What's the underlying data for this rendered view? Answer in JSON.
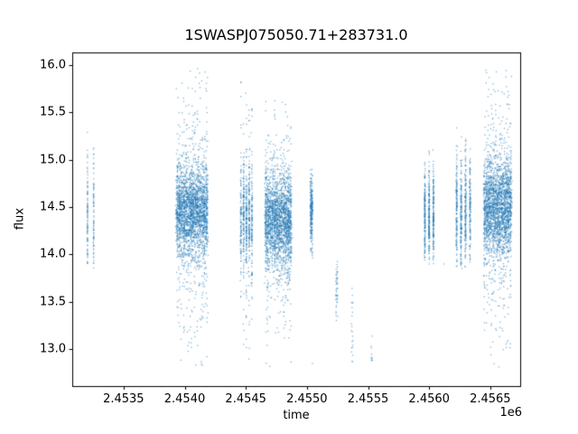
{
  "figure": {
    "background": "#ffffff"
  },
  "chart_data": {
    "type": "scatter",
    "title": "1SWASPJ075050.71+283731.0",
    "xlabel": "time",
    "ylabel": "flux",
    "x_offset_factor": "1e6",
    "xlim": [
      2453080,
      2456745
    ],
    "ylim": [
      12.61,
      16.135
    ],
    "grid": false,
    "legend": null,
    "xticks": {
      "values": [
        2453500,
        2454000,
        2454500,
        2455000,
        2455500,
        2456000,
        2456500
      ],
      "labels": [
        "2.4535",
        "2.4540",
        "2.4545",
        "2.4550",
        "2.4555",
        "2.4560",
        "2.4565"
      ]
    },
    "yticks": {
      "values": [
        13.0,
        13.5,
        14.0,
        14.5,
        15.0,
        15.5,
        16.0
      ],
      "labels": [
        "13.0",
        "13.5",
        "14.0",
        "14.5",
        "15.0",
        "15.5",
        "16.0"
      ]
    },
    "point_color": "#1f77b4",
    "point_alpha": 0.55,
    "point_size": 1.3,
    "seed": 42,
    "clusters": [
      {
        "name": "season-1",
        "t_center": 2453230,
        "t_spread": 25,
        "n": 180,
        "columns": 2,
        "flux_mean": 14.4,
        "flux_core_std": 0.33,
        "core_frac": 0.85,
        "flux_tail_std": 0.55,
        "flux_min": 13.85,
        "flux_max": 15.45
      },
      {
        "name": "season-2",
        "t_center": 2454060,
        "t_spread": 120,
        "n": 2600,
        "columns": 14,
        "flux_mean": 14.45,
        "flux_core_std": 0.22,
        "core_frac": 0.78,
        "flux_tail_std": 0.75,
        "flux_min": 12.78,
        "flux_max": 15.97
      },
      {
        "name": "season-3",
        "t_center": 2454505,
        "t_spread": 45,
        "n": 700,
        "columns": 5,
        "flux_mean": 14.4,
        "flux_core_std": 0.28,
        "core_frac": 0.75,
        "flux_tail_std": 0.8,
        "flux_min": 12.85,
        "flux_max": 15.95
      },
      {
        "name": "season-4",
        "t_center": 2454765,
        "t_spread": 100,
        "n": 2200,
        "columns": 12,
        "flux_mean": 14.35,
        "flux_core_std": 0.24,
        "core_frac": 0.8,
        "flux_tail_std": 0.6,
        "flux_min": 12.78,
        "flux_max": 15.65
      },
      {
        "name": "season-5",
        "t_center": 2455037,
        "t_spread": 10,
        "n": 260,
        "columns": 1,
        "flux_mean": 14.45,
        "flux_core_std": 0.2,
        "core_frac": 0.9,
        "flux_tail_std": 0.38,
        "flux_min": 13.95,
        "flux_max": 14.95
      },
      {
        "name": "season-6",
        "t_center": 2455245,
        "t_spread": 8,
        "n": 45,
        "columns": 1,
        "flux_mean": 13.6,
        "flux_core_std": 0.17,
        "core_frac": 1.0,
        "flux_tail_std": 0.3,
        "flux_min": 13.3,
        "flux_max": 13.95
      },
      {
        "name": "season-7",
        "t_center": 2455370,
        "t_spread": 6,
        "n": 22,
        "columns": 1,
        "flux_mean": 13.2,
        "flux_core_std": 0.25,
        "core_frac": 1.0,
        "flux_tail_std": 0.3,
        "flux_min": 12.8,
        "flux_max": 13.65
      },
      {
        "name": "season-8",
        "t_center": 2455530,
        "t_spread": 6,
        "n": 10,
        "columns": 1,
        "flux_mean": 12.95,
        "flux_core_std": 0.12,
        "core_frac": 1.0,
        "flux_tail_std": 0.2,
        "flux_min": 12.78,
        "flux_max": 13.2
      },
      {
        "name": "season-9",
        "t_center": 2456000,
        "t_spread": 35,
        "n": 550,
        "columns": 3,
        "flux_mean": 14.4,
        "flux_core_std": 0.25,
        "core_frac": 0.92,
        "flux_tail_std": 0.45,
        "flux_min": 13.9,
        "flux_max": 15.15
      },
      {
        "name": "season-10",
        "t_center": 2456280,
        "t_spread": 55,
        "n": 650,
        "columns": 4,
        "flux_mean": 14.45,
        "flux_core_std": 0.28,
        "core_frac": 0.85,
        "flux_tail_std": 0.5,
        "flux_min": 13.85,
        "flux_max": 15.4
      },
      {
        "name": "season-11",
        "t_center": 2456560,
        "t_spread": 105,
        "n": 2400,
        "columns": 13,
        "flux_mean": 14.5,
        "flux_core_std": 0.26,
        "core_frac": 0.78,
        "flux_tail_std": 0.75,
        "flux_min": 12.78,
        "flux_max": 15.98
      }
    ],
    "extra_points": [
      [
        2455045,
        12.85
      ],
      [
        2456120,
        13.9
      ]
    ]
  }
}
